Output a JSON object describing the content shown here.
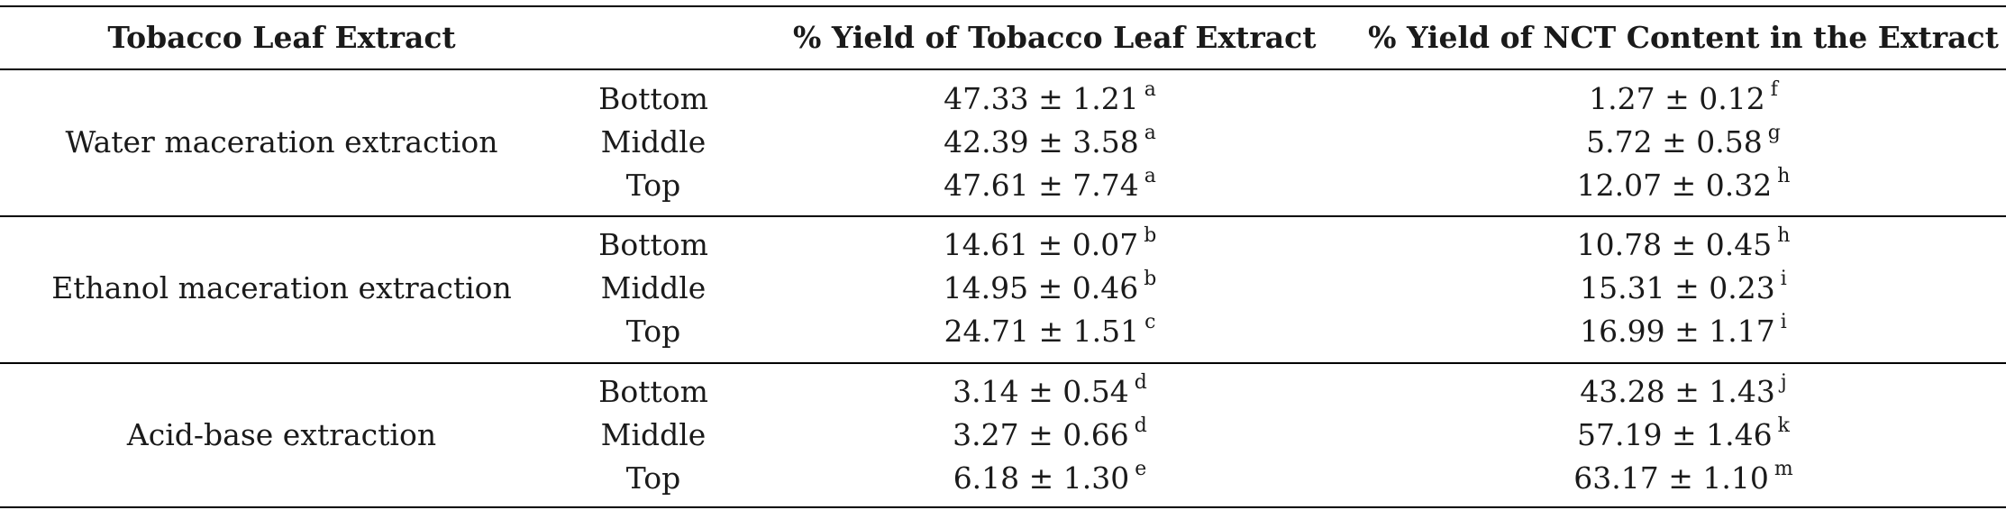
{
  "headers": {
    "extract": "Tobacco Leaf Extract",
    "yield": "% Yield of Tobacco Leaf Extract",
    "nct": "% Yield of NCT Content in the Extract"
  },
  "groups": [
    {
      "name": "Water maceration extraction",
      "rows": [
        {
          "position": "Bottom",
          "yield": "47.33 ± 1.21",
          "yield_sup": "a",
          "nct": "1.27 ± 0.12",
          "nct_sup": "f"
        },
        {
          "position": "Middle",
          "yield": "42.39 ± 3.58",
          "yield_sup": "a",
          "nct": "5.72 ± 0.58",
          "nct_sup": "g"
        },
        {
          "position": "Top",
          "yield": "47.61 ± 7.74",
          "yield_sup": "a",
          "nct": "12.07 ± 0.32",
          "nct_sup": "h"
        }
      ]
    },
    {
      "name": "Ethanol maceration extraction",
      "rows": [
        {
          "position": "Bottom",
          "yield": "14.61 ± 0.07",
          "yield_sup": "b",
          "nct": "10.78 ± 0.45",
          "nct_sup": "h"
        },
        {
          "position": "Middle",
          "yield": "14.95 ± 0.46",
          "yield_sup": "b",
          "nct": "15.31 ± 0.23",
          "nct_sup": "i"
        },
        {
          "position": "Top",
          "yield": "24.71 ± 1.51",
          "yield_sup": "c",
          "nct": "16.99 ± 1.17",
          "nct_sup": "i"
        }
      ]
    },
    {
      "name": "Acid-base extraction",
      "rows": [
        {
          "position": "Bottom",
          "yield": "3.14 ± 0.54",
          "yield_sup": "d",
          "nct": "43.28 ± 1.43",
          "nct_sup": "j"
        },
        {
          "position": "Middle",
          "yield": "3.27 ± 0.66",
          "yield_sup": "d",
          "nct": "57.19 ± 1.46",
          "nct_sup": "k"
        },
        {
          "position": "Top",
          "yield": "6.18 ± 1.30",
          "yield_sup": "e",
          "nct": "63.17 ± 1.10",
          "nct_sup": "m"
        }
      ]
    }
  ]
}
